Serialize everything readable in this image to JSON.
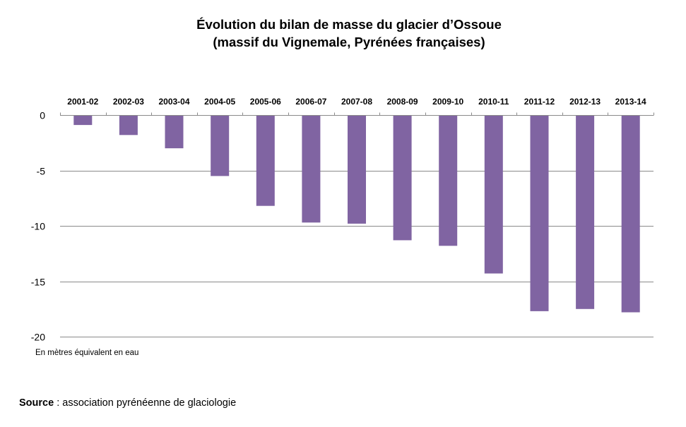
{
  "chart_data": {
    "type": "bar",
    "title": "Évolution du bilan de masse du glacier d’Ossoue",
    "subtitle": "(massif du Vignemale, Pyrénées françaises)",
    "unit_note": "En mètres équivalent en eau",
    "source_label": "Source",
    "source_text": " : association pyrénéenne de glaciologie",
    "categories": [
      "2001-02",
      "2002-03",
      "2003-04",
      "2004-05",
      "2005-06",
      "2006-07",
      "2007-08",
      "2008-09",
      "2009-10",
      "2010-11",
      "2011-12",
      "2012-13",
      "2013-14"
    ],
    "values": [
      -0.9,
      -1.8,
      -3.0,
      -5.5,
      -8.2,
      -9.7,
      -9.8,
      -11.3,
      -11.8,
      -14.3,
      -17.7,
      -17.5,
      -17.8
    ],
    "ylim": [
      -20,
      0
    ],
    "yticks": [
      0,
      -5,
      -10,
      -15,
      -20
    ],
    "grid": true,
    "xaxis_position": "top",
    "bar_color": "#8064A2"
  }
}
